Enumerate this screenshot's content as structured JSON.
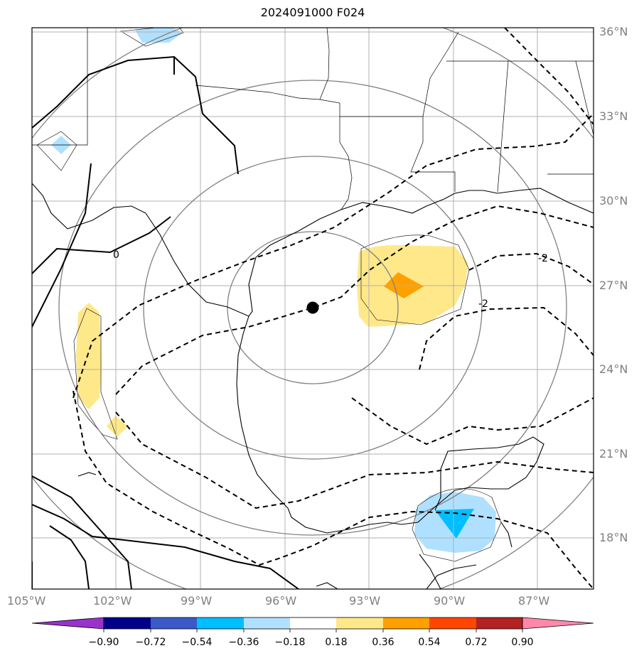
{
  "title": "2024091000 F024",
  "map": {
    "longitude_labels": [
      "105°W",
      "102°W",
      "99°W",
      "96°W",
      "93°W",
      "90°W",
      "87°W"
    ],
    "latitude_labels": [
      "36°N",
      "33°N",
      "30°N",
      "27°N",
      "24°N",
      "21°N",
      "18°N"
    ],
    "contour_labels": [
      "0",
      "-2",
      "-2"
    ],
    "center_marker": {
      "lon": -95.0,
      "lat": 26.2
    },
    "colors": {
      "grid": "#b0b0b0",
      "rings": "#808080",
      "coast": "#000000"
    }
  },
  "colorbar": {
    "tick_labels": [
      "−0.90",
      "−0.72",
      "−0.54",
      "−0.36",
      "−0.18",
      "0.18",
      "0.36",
      "0.54",
      "0.72",
      "0.90"
    ],
    "colors": [
      "#9932CC",
      "#00008B",
      "#3A5BC7",
      "#00BFFF",
      "#B0E0FF",
      "#FFFFFF",
      "#FFE88A",
      "#FFA000",
      "#FF4500",
      "#B22222",
      "#FF88AA"
    ],
    "extend": "both"
  }
}
